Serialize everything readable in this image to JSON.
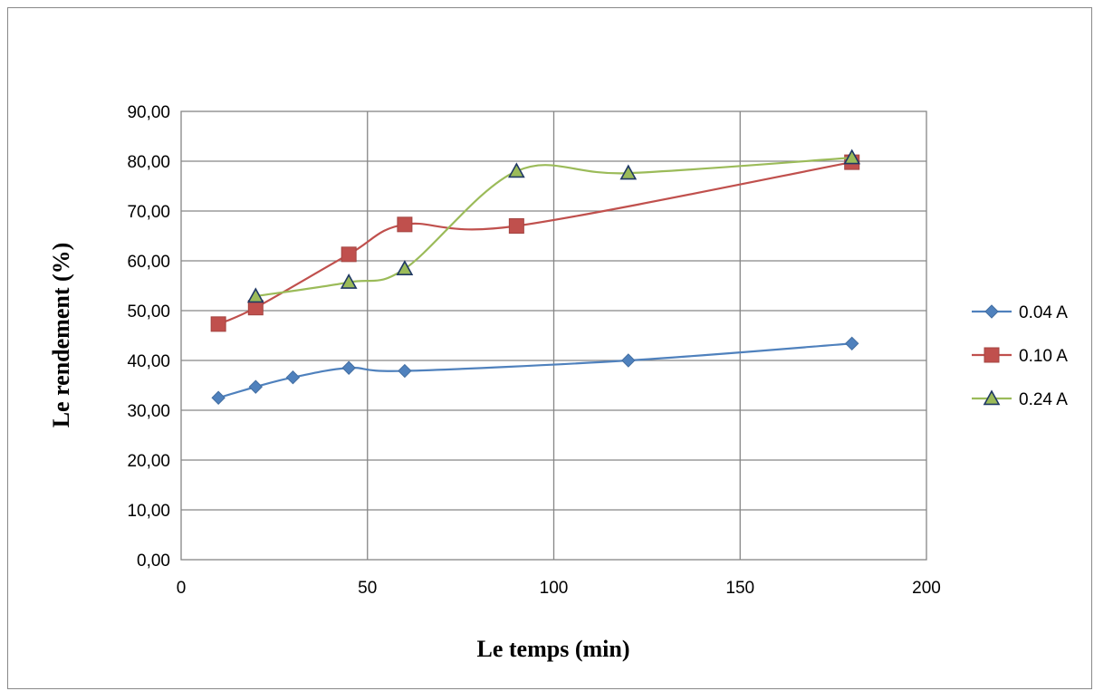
{
  "chart_data": {
    "type": "line",
    "xlabel": "Le temps (min)",
    "ylabel": "Le rendement (%)",
    "xlim": [
      0,
      200
    ],
    "ylim": [
      0,
      90
    ],
    "x_ticks": [
      "0",
      "50",
      "100",
      "150",
      "200"
    ],
    "y_ticks": [
      "0,00",
      "10,00",
      "20,00",
      "30,00",
      "40,00",
      "50,00",
      "60,00",
      "70,00",
      "80,00",
      "90,00"
    ],
    "grid": true,
    "legend_position": "right",
    "series": [
      {
        "name": "0.04 A",
        "color": "#4F81BD",
        "marker": "diamond",
        "x": [
          10,
          20,
          30,
          45,
          60,
          120,
          180
        ],
        "y": [
          32.5,
          34.7,
          36.6,
          38.5,
          37.9,
          40.0,
          43.4
        ]
      },
      {
        "name": "0.10 A",
        "color": "#C0504D",
        "marker": "square",
        "x": [
          10,
          20,
          45,
          60,
          90,
          180
        ],
        "y": [
          47.3,
          50.6,
          61.3,
          67.3,
          67.0,
          79.8
        ]
      },
      {
        "name": "0.24 A",
        "color": "#9BBB59",
        "marker": "triangle",
        "x": [
          20,
          45,
          60,
          90,
          120,
          180
        ],
        "y": [
          52.9,
          55.7,
          58.4,
          78.0,
          77.6,
          80.7
        ]
      }
    ]
  }
}
